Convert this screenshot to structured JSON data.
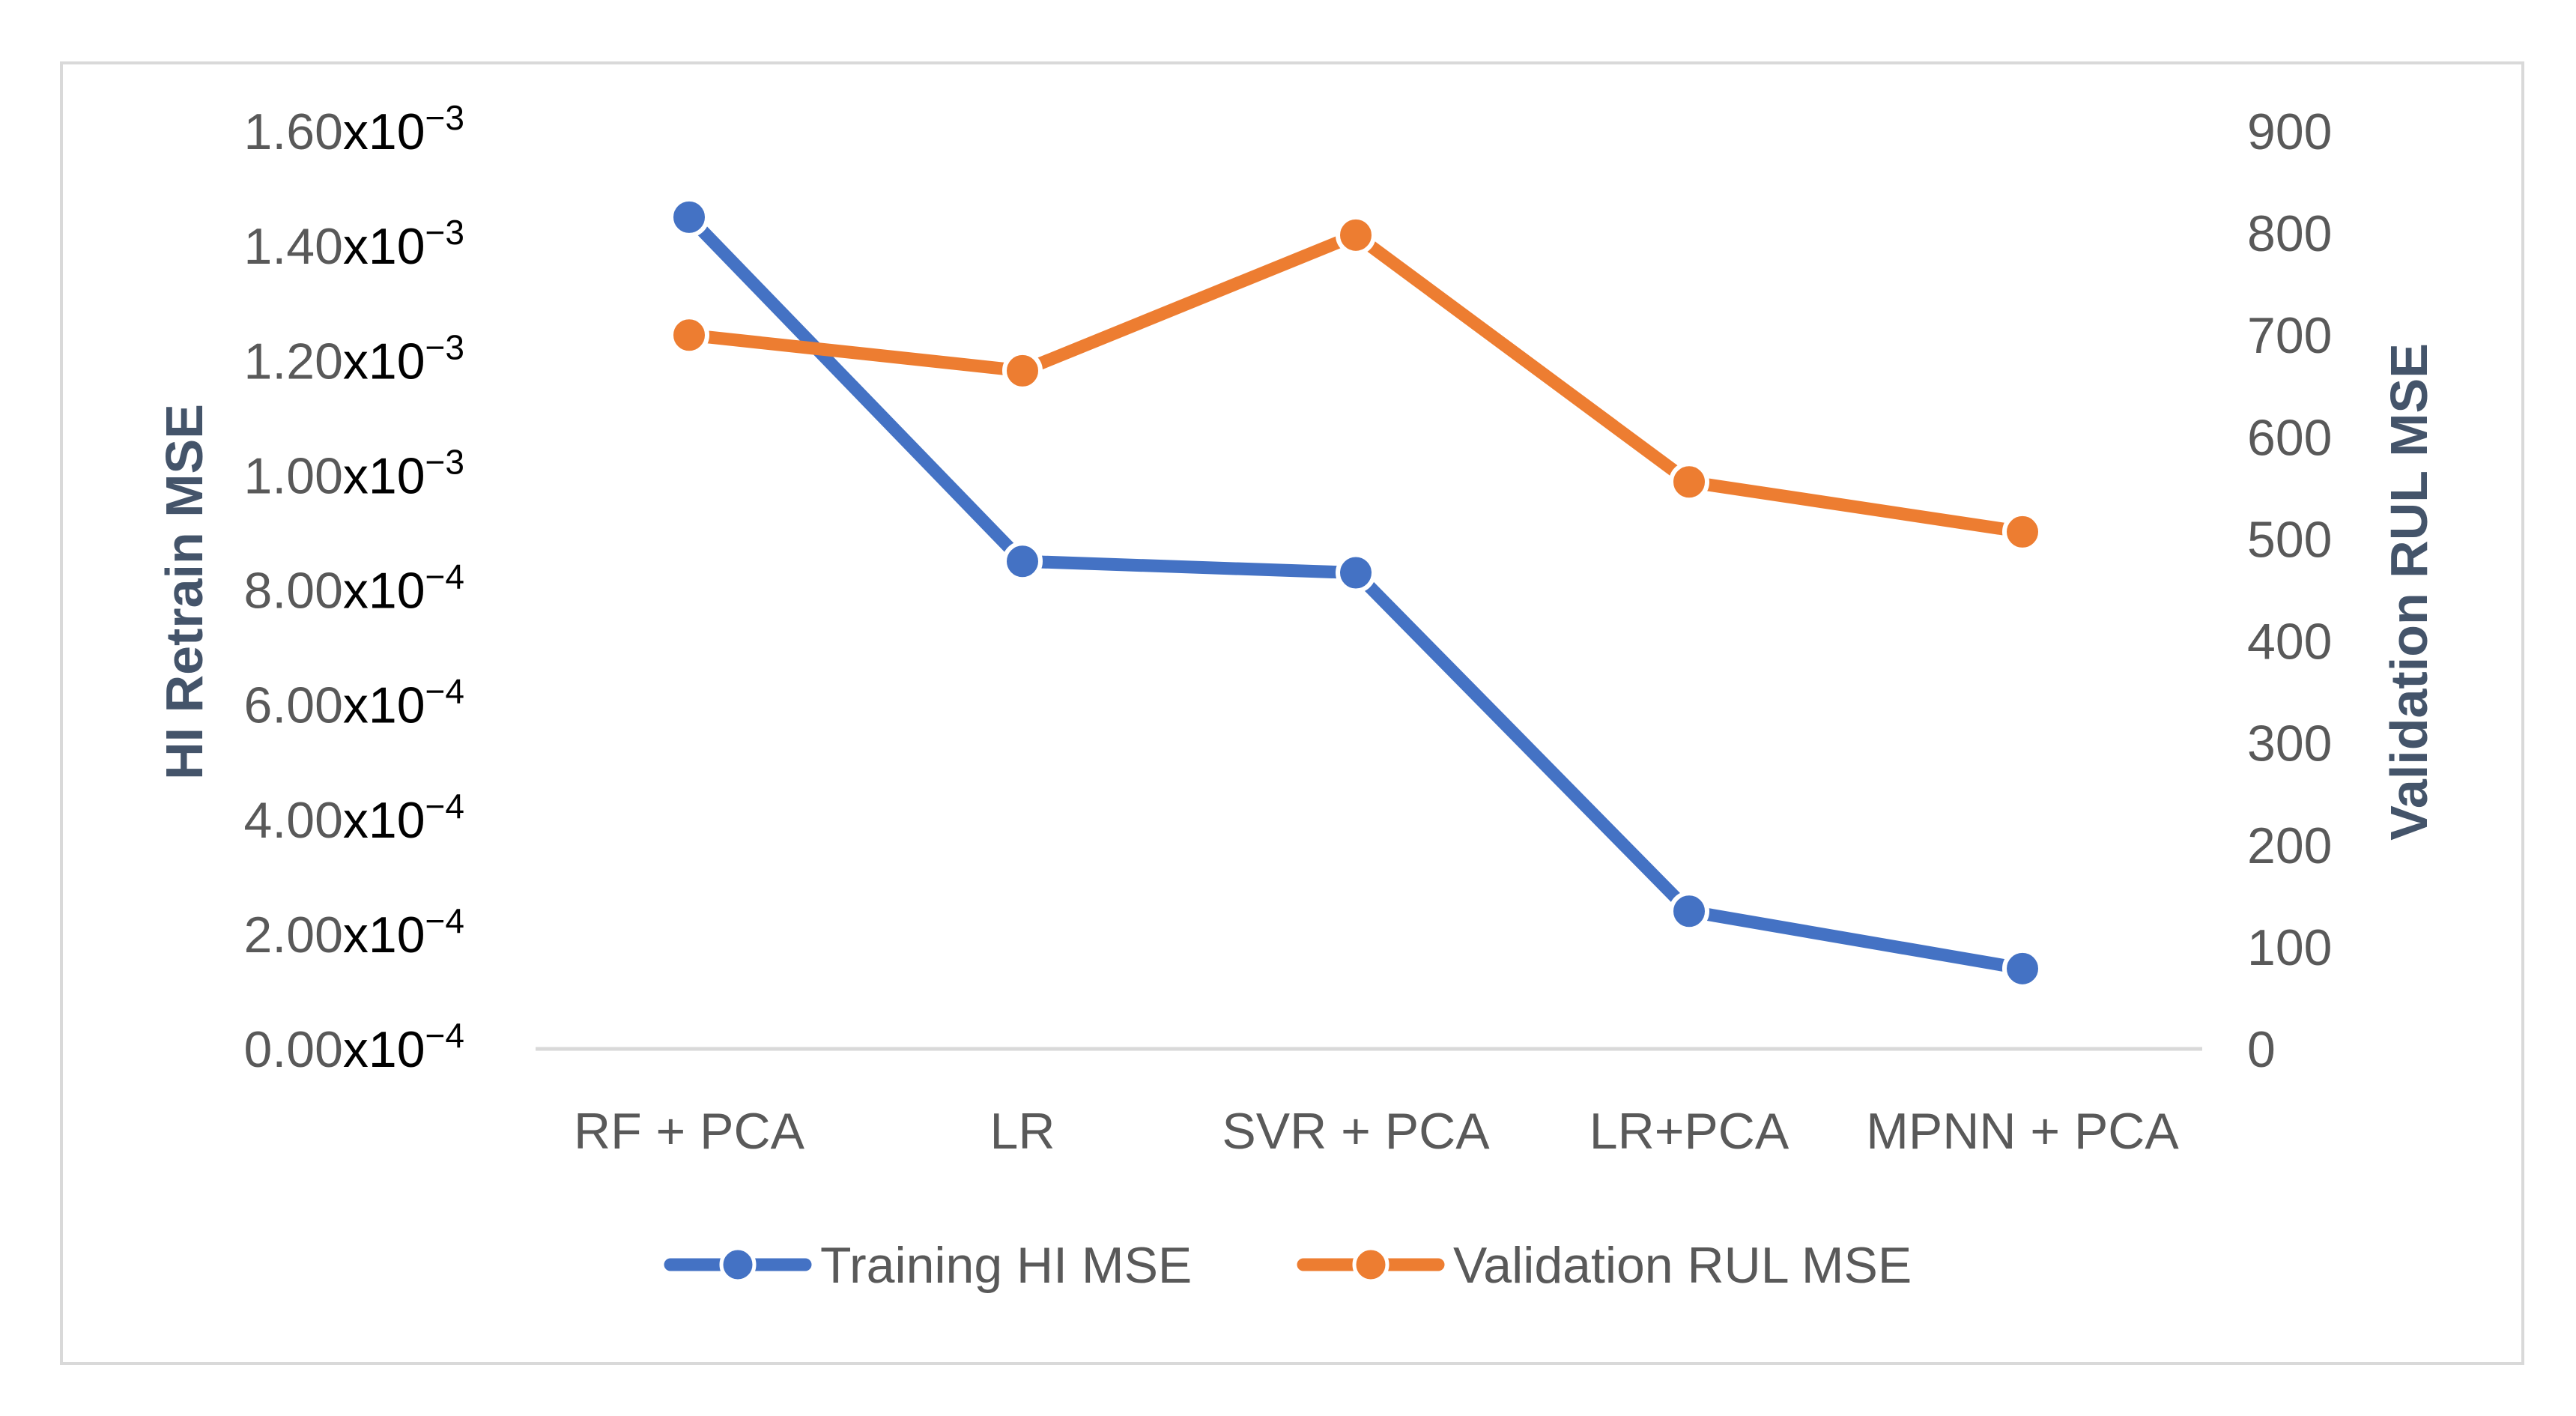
{
  "chart_data": {
    "type": "line",
    "categories": [
      "RF + PCA",
      "LR",
      "SVR + PCA",
      "LR+PCA",
      "MPNN + PCA"
    ],
    "series": [
      {
        "name": "Training HI MSE",
        "axis": "left",
        "color": "#4472c4",
        "values": [
          0.00145,
          0.00085,
          0.00083,
          0.00024,
          0.00014
        ]
      },
      {
        "name": "Validation RUL MSE",
        "axis": "right",
        "color": "#ed7d31",
        "values": [
          700,
          665,
          798,
          556,
          507
        ]
      }
    ],
    "y_left": {
      "label": "HI Retrain MSE",
      "ylim": [
        0,
        0.0016
      ],
      "ticks": [
        {
          "value": 0,
          "mantissa": "0.00",
          "base": "x10",
          "exp": "−4"
        },
        {
          "value": 0.0002,
          "mantissa": "2.00",
          "base": "x10",
          "exp": "−4"
        },
        {
          "value": 0.0004,
          "mantissa": "4.00",
          "base": "x10",
          "exp": "−4"
        },
        {
          "value": 0.0006,
          "mantissa": "6.00",
          "base": "x10",
          "exp": "−4"
        },
        {
          "value": 0.0008,
          "mantissa": "8.00",
          "base": "x10",
          "exp": "−4"
        },
        {
          "value": 0.001,
          "mantissa": "1.00",
          "base": "x10",
          "exp": "−3"
        },
        {
          "value": 0.0012,
          "mantissa": "1.20",
          "base": "x10",
          "exp": "−3"
        },
        {
          "value": 0.0014,
          "mantissa": "1.40",
          "base": "x10",
          "exp": "−3"
        },
        {
          "value": 0.0016,
          "mantissa": "1.60",
          "base": "x10",
          "exp": "−3"
        }
      ]
    },
    "y_right": {
      "label": "Validation RUL MSE",
      "ylim": [
        0,
        900
      ],
      "ticks": [
        0,
        100,
        200,
        300,
        400,
        500,
        600,
        700,
        800,
        900
      ]
    },
    "legend": {
      "position": "bottom-center"
    },
    "grid": false,
    "axis_color": "#d9d9d9",
    "text_color": "#595959",
    "title_color": "#44546a"
  }
}
